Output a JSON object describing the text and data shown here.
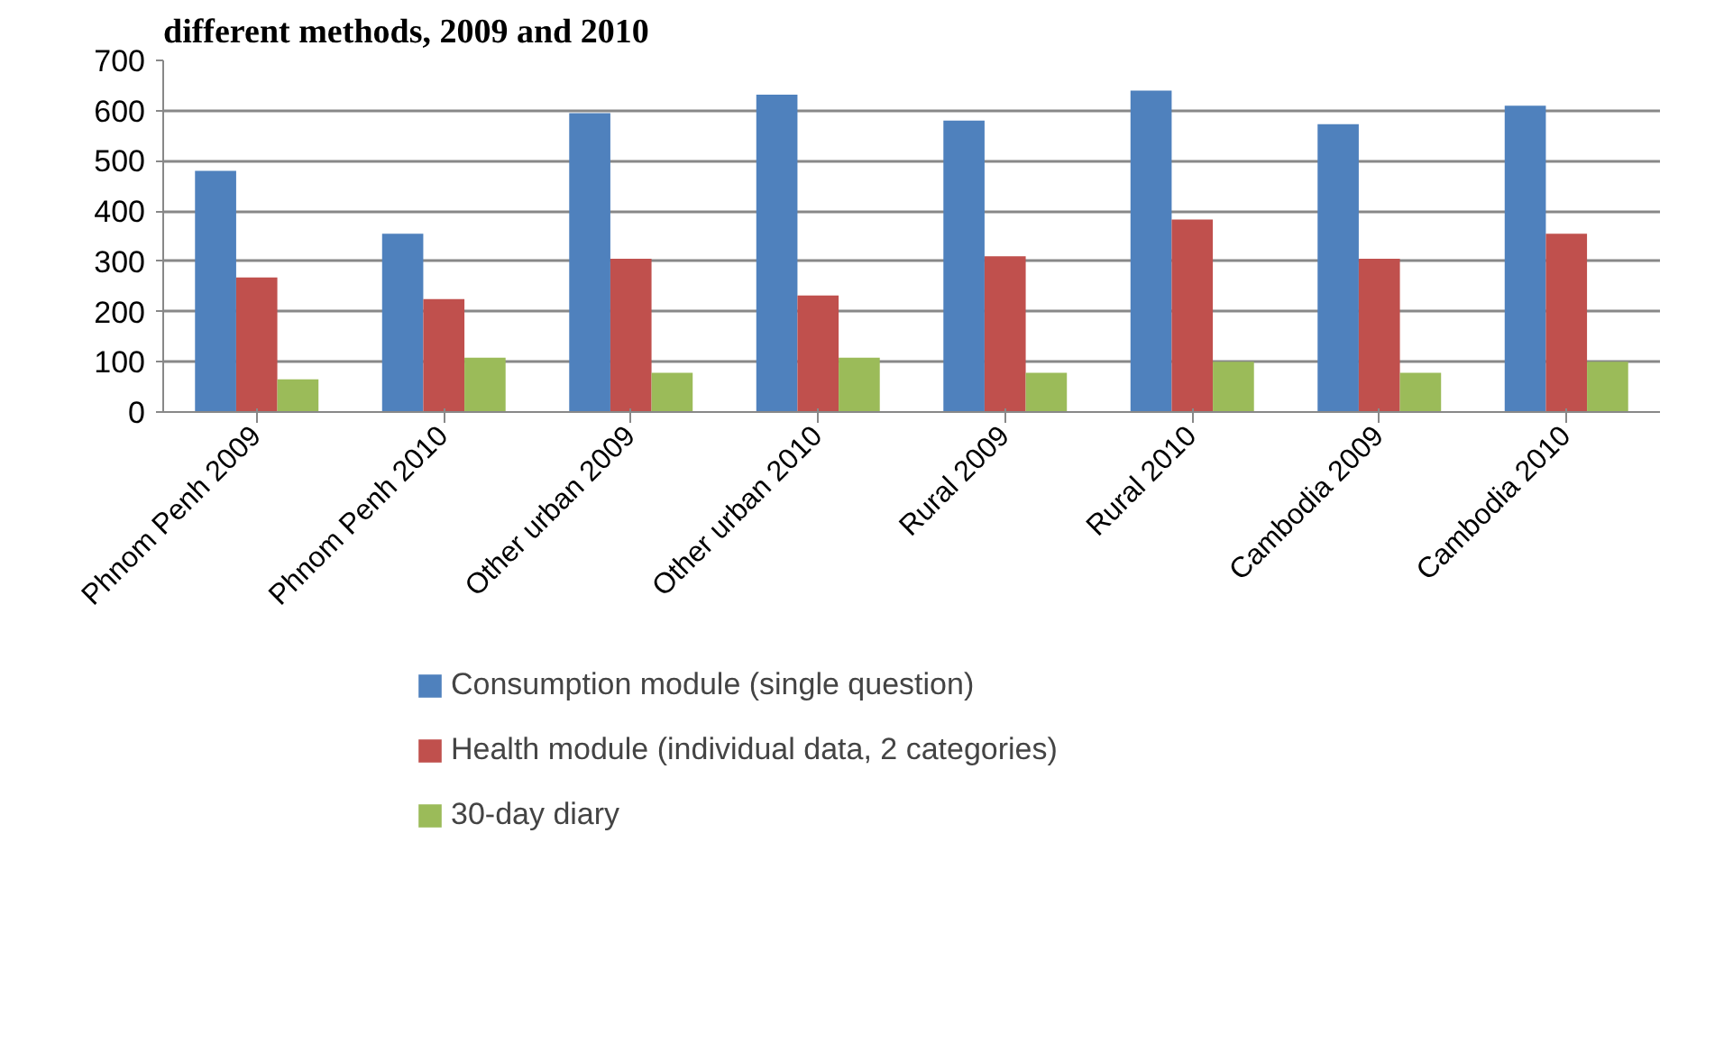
{
  "chart_data": {
    "type": "bar",
    "title": "different methods, 2009 and 2010",
    "categories": [
      "Phnom Penh 2009",
      "Phnom Penh 2010",
      "Other urban 2009",
      "Other urban 2010",
      "Rural 2009",
      "Rural 2010",
      "Cambodia 2009",
      "Cambodia 2010"
    ],
    "series": [
      {
        "name": "Consumption module (single question)",
        "color": "#4f81bd",
        "values": [
          480,
          355,
          595,
          632,
          580,
          640,
          573,
          610
        ]
      },
      {
        "name": "Health module (individual data, 2 categories)",
        "color": "#c0504d",
        "values": [
          268,
          225,
          305,
          232,
          310,
          383,
          305,
          355
        ]
      },
      {
        "name": "30-day diary",
        "color": "#9bbb59",
        "values": [
          65,
          108,
          78,
          108,
          78,
          100,
          78,
          100
        ]
      }
    ],
    "ylim": [
      0,
      700
    ],
    "yticks": [
      0,
      100,
      200,
      300,
      400,
      500,
      600,
      700
    ],
    "grid": "y",
    "legend": "bottom"
  }
}
